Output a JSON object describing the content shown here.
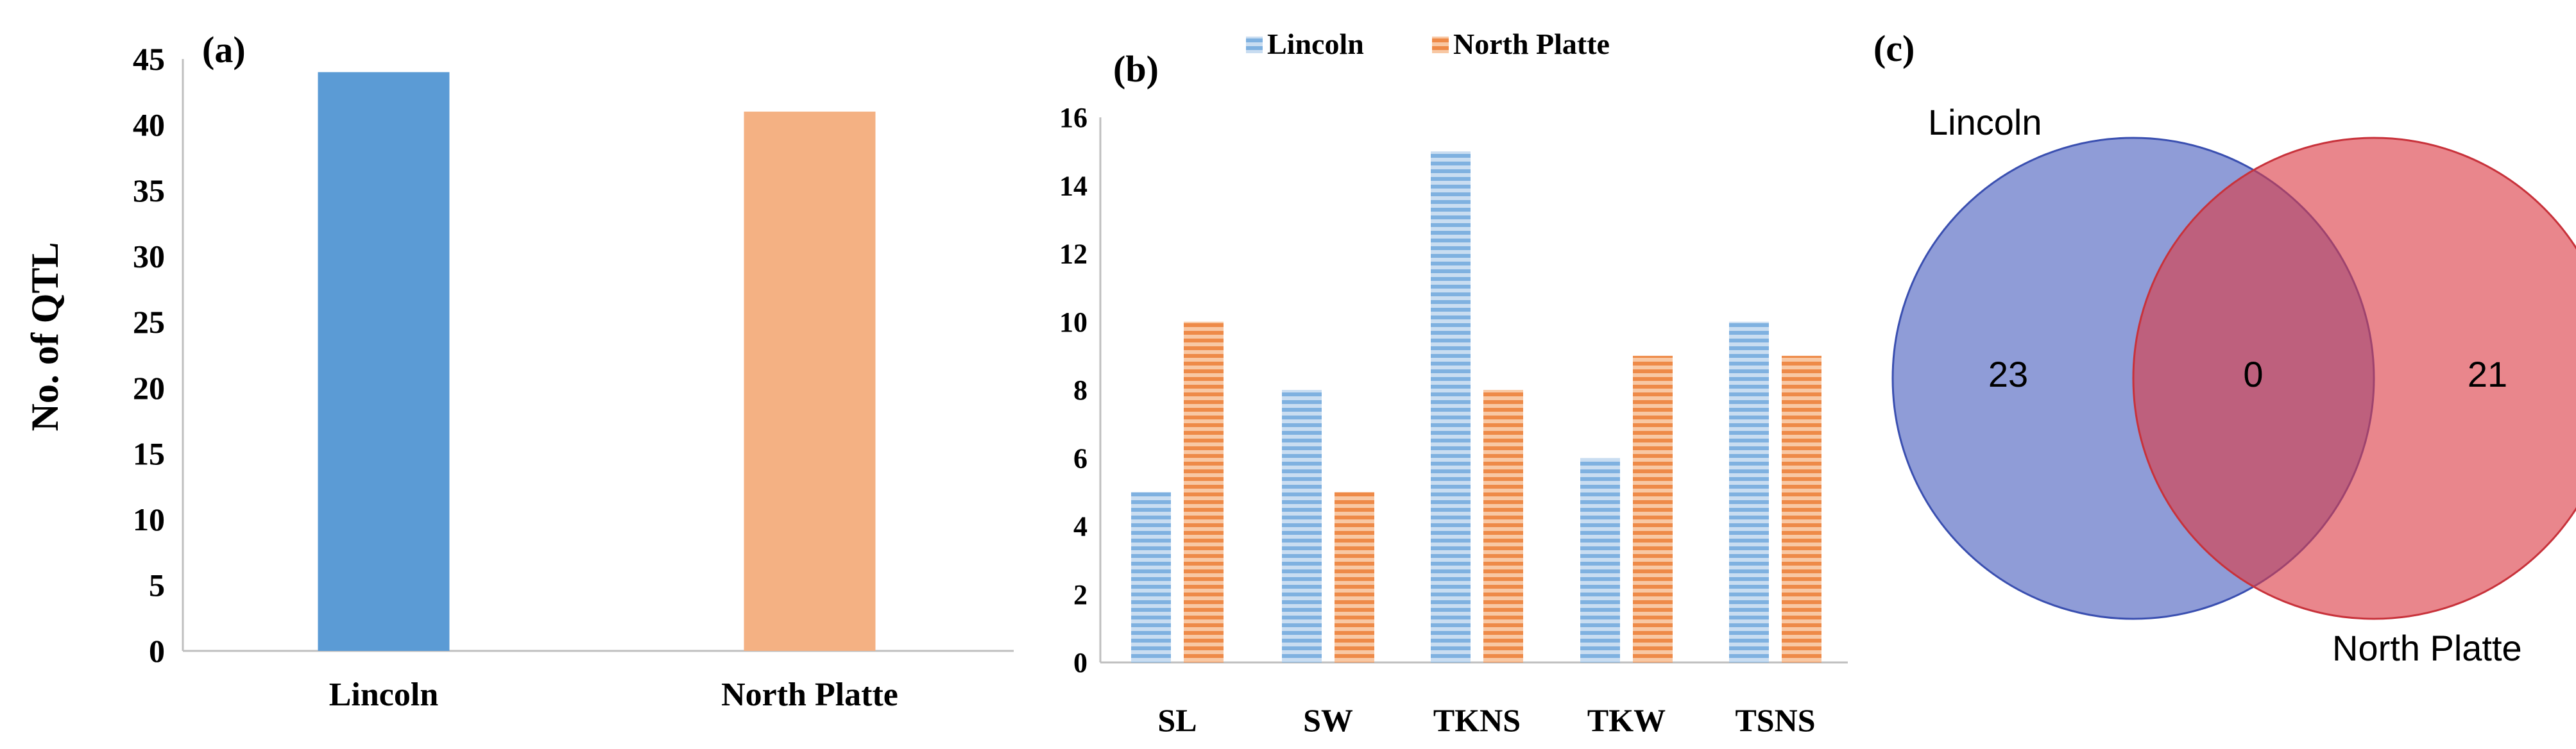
{
  "chart_data": [
    {
      "panel_label": "(a)",
      "type": "bar",
      "title": "",
      "xlabel": "",
      "ylabel": "No. of QTL",
      "categories": [
        "Lincoln",
        "North Platte"
      ],
      "values": [
        44,
        41
      ],
      "ylim": [
        0,
        45
      ],
      "yticks": [
        0,
        5,
        10,
        15,
        20,
        25,
        30,
        35,
        40,
        45
      ],
      "grid": false,
      "colors": {
        "Lincoln": "#5b9bd5",
        "North Platte": "#f4b183"
      }
    },
    {
      "panel_label": "(b)",
      "type": "bar",
      "title": "",
      "xlabel": "",
      "ylabel": "",
      "categories": [
        "SL",
        "SW",
        "TKNS",
        "TKW",
        "TSNS"
      ],
      "series": [
        {
          "name": "Lincoln",
          "values": [
            5,
            8,
            15,
            6,
            10
          ],
          "color": "#5b9bd5"
        },
        {
          "name": "North Platte",
          "values": [
            10,
            5,
            8,
            9,
            9
          ],
          "color": "#ed7d31"
        }
      ],
      "ylim": [
        0,
        16
      ],
      "yticks": [
        0,
        2,
        4,
        6,
        8,
        10,
        12,
        14,
        16
      ],
      "legend": "top-center",
      "grid": false
    },
    {
      "panel_label": "(c)",
      "type": "venn",
      "sets": [
        {
          "name": "Lincoln",
          "only": "23",
          "color": "#4a5fbf"
        },
        {
          "name": "North Platte",
          "only": "21",
          "color": "#dc3c45"
        }
      ],
      "intersection": "0"
    }
  ]
}
